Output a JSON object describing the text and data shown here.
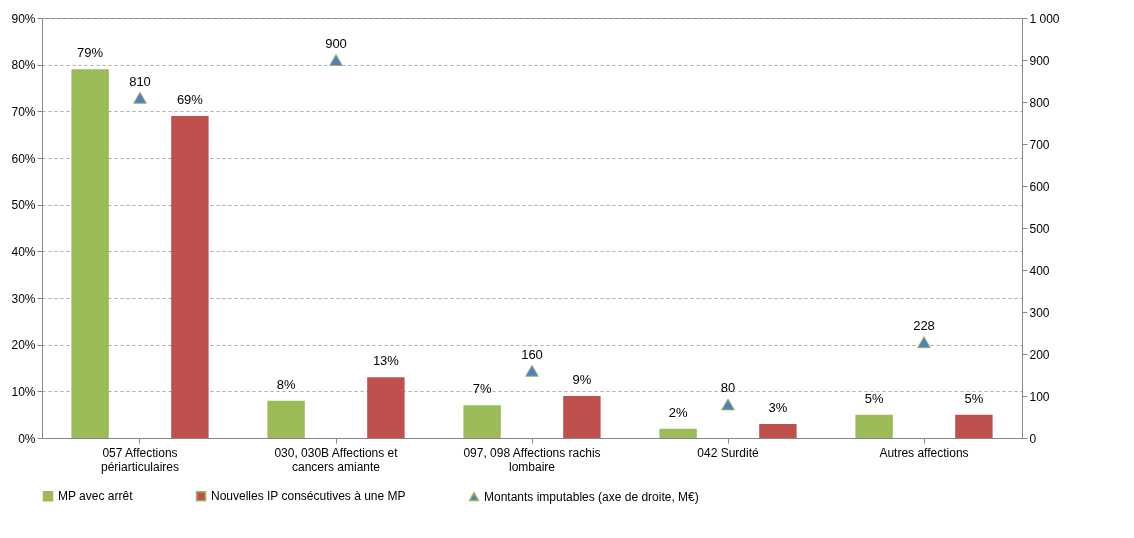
{
  "chart_data": {
    "type": "bar",
    "categories": [
      "057 Affections périarticulaires",
      "030, 030B Affections et cancers amiante",
      "097, 098 Affections rachis lombaire",
      "042 Surdité",
      "Autres affections"
    ],
    "series": [
      {
        "name": "MP avec arrêt",
        "color": "#9bbb59",
        "values": [
          79,
          8,
          7,
          2,
          5
        ],
        "value_labels": [
          "79%",
          "8%",
          "7%",
          "2%",
          "5%"
        ]
      },
      {
        "name": "Nouvelles IP consécutives à une MP",
        "color": "#c0504d",
        "values": [
          69,
          13,
          9,
          3,
          5
        ],
        "value_labels": [
          "69%",
          "13%",
          "9%",
          "3%",
          "5%"
        ]
      },
      {
        "name": "Montants imputables (axe de droite, M€)",
        "type": "scatter",
        "axis": "y2",
        "marker": "triangle",
        "color": "#4f81bd",
        "x": [
          "057 Affections périarticulaires",
          "030, 030B Affections et cancers amiante",
          "097, 098 Affections rachis lombaire",
          "042 Surdité",
          "Autres affections"
        ],
        "values": [
          810,
          900,
          160,
          80,
          228
        ],
        "value_labels": [
          "810",
          "900",
          "160",
          "80",
          "228"
        ]
      }
    ],
    "ylim": [
      0,
      90
    ],
    "yticks": [
      {
        "value": 0,
        "label": "0%"
      },
      {
        "value": 10,
        "label": "10%"
      },
      {
        "value": 20,
        "label": "20%"
      },
      {
        "value": 30,
        "label": "30%"
      },
      {
        "value": 40,
        "label": "40%"
      },
      {
        "value": 50,
        "label": "50%"
      },
      {
        "value": 60,
        "label": "60%"
      },
      {
        "value": 70,
        "label": "70%"
      },
      {
        "value": 80,
        "label": "80%"
      },
      {
        "value": 90,
        "label": "90%"
      }
    ],
    "y2lim": [
      0,
      1000
    ],
    "y2ticks": [
      0,
      100,
      200,
      300,
      400,
      500,
      600,
      700,
      800,
      900,
      {
        "value": 1000,
        "label": "1 000"
      }
    ],
    "grid": "y",
    "legend": "bottom"
  }
}
